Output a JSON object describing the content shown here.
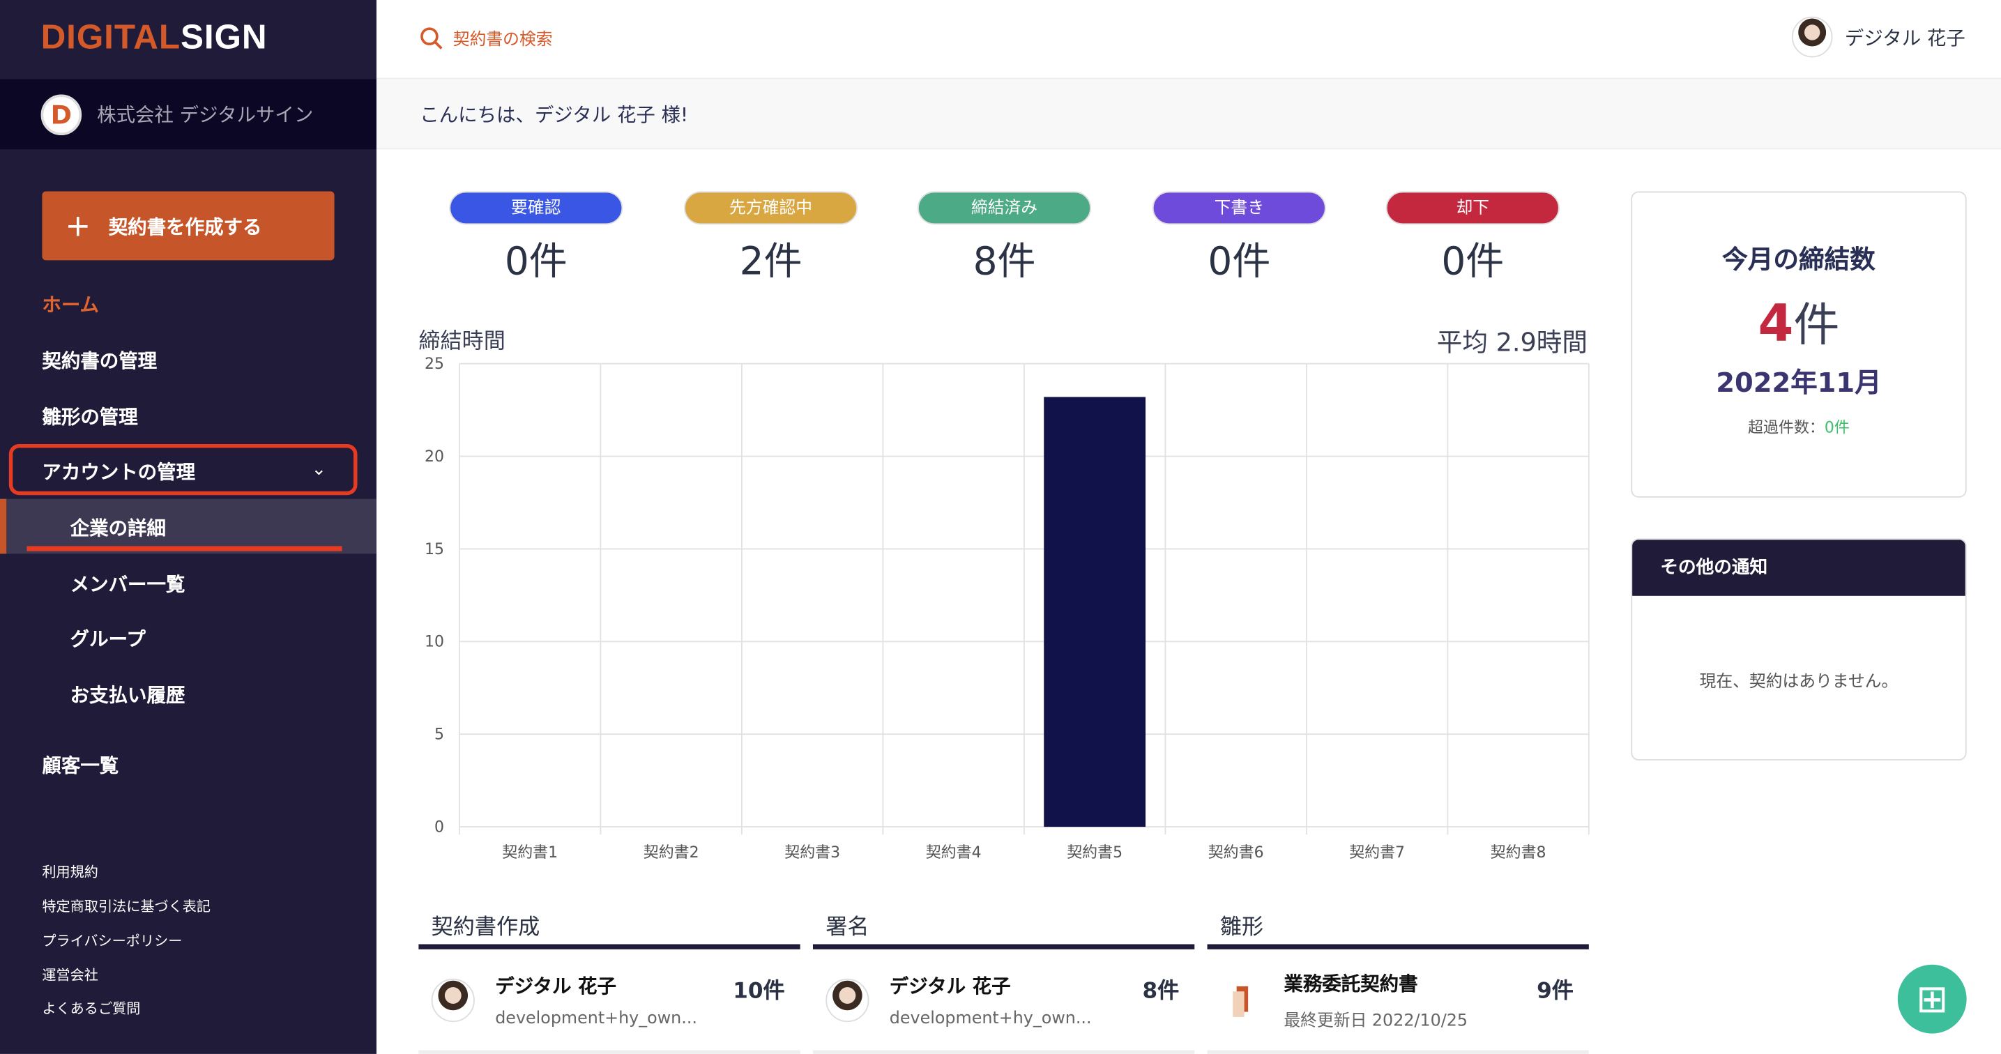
{
  "brand": {
    "logo_part1": "DIGITAL",
    "logo_part2": "SIGN",
    "company_initial": "D",
    "company_name": "株式会社 デジタルサイン"
  },
  "sidebar": {
    "create_label": "契約書を作成する",
    "items": [
      "ホーム",
      "契約書の管理",
      "雛形の管理",
      "アカウントの管理",
      "企業の詳細",
      "メンバー一覧",
      "グループ",
      "お支払い履歴",
      "顧客一覧"
    ],
    "footer": [
      "利用規約",
      "特定商取引法に基づく表記",
      "プライバシーポリシー",
      "運営会社",
      "よくあるご質問"
    ]
  },
  "header": {
    "search_placeholder": "契約書の検索",
    "user_name": "デジタル 花子",
    "greeting": "こんにちは、デジタル 花子 様!"
  },
  "stats": [
    {
      "label": "要確認",
      "count": "0件",
      "color": "#3a56e4"
    },
    {
      "label": "先方確認中",
      "count": "2件",
      "color": "#d9a742"
    },
    {
      "label": "締結済み",
      "count": "8件",
      "color": "#4caa86"
    },
    {
      "label": "下書き",
      "count": "0件",
      "color": "#6f4bdc"
    },
    {
      "label": "却下",
      "count": "0件",
      "color": "#c4283e"
    }
  ],
  "chart_title": "締結時間",
  "chart_avg": "平均 2.9時間",
  "chart_data": {
    "type": "bar",
    "categories": [
      "契約書1",
      "契約書2",
      "契約書3",
      "契約書4",
      "契約書5",
      "契約書6",
      "契約書7",
      "契約書8"
    ],
    "values": [
      0,
      0,
      0,
      0,
      23.2,
      0,
      0,
      0
    ],
    "ylim": [
      0,
      25
    ],
    "yticks": [
      0,
      5,
      10,
      15,
      20,
      25
    ],
    "grid": true,
    "color": "#12124a"
  },
  "monthly": {
    "title": "今月の締結数",
    "count": "4",
    "unit": "件",
    "month": "2022年11月",
    "overflow_label": "超過件数：",
    "overflow_value": "0件"
  },
  "notice": {
    "title": "その他の通知",
    "body": "現在、契約はありません。"
  },
  "lists": [
    {
      "title": "契約書作成",
      "name": "デジタル 花子",
      "sub": "development+hy_own...",
      "count": "10件"
    },
    {
      "title": "署名",
      "name": "デジタル 花子",
      "sub": "development+hy_own...",
      "count": "8件"
    },
    {
      "title": "雛形",
      "name": "業務委託契約書",
      "sub": "最終更新日 2022/10/25",
      "count": "9件"
    }
  ]
}
